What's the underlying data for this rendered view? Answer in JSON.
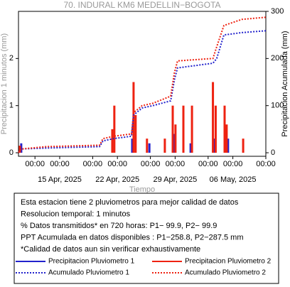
{
  "chart_data": {
    "type": "combo",
    "title": "70. INDURAL KM6 MEDELLIN−BOGOTA",
    "xlabel": "Tiempo",
    "ylabel": "Precipitacion 1 minutos (mm)",
    "y2label": "Precipitacion Acumulada (mm)",
    "xlim": [
      "2025-04-10 00:00",
      "2025-05-10 00:00"
    ],
    "xticks": [
      {
        "value": "2025-04-12 00:00",
        "label": "00:00"
      },
      {
        "value": "2025-04-15 00:00",
        "label": "00:00"
      },
      {
        "value": "2025-04-19 00:00",
        "label": "00:00"
      },
      {
        "value": "2025-04-22 00:00",
        "label": "00:00"
      },
      {
        "value": "2025-04-26 00:00",
        "label": "00:00"
      },
      {
        "value": "2025-04-29 00:00",
        "label": "00:00"
      },
      {
        "value": "2025-05-03 00:00",
        "label": "00:00"
      },
      {
        "value": "2025-05-06 00:00",
        "label": "00:00"
      },
      {
        "value": "2025-05-10 00:00",
        "label": "00:00"
      }
    ],
    "xtick_dates": [
      {
        "value": "2025-04-15 00:00",
        "label": "15 Apr, 2025"
      },
      {
        "value": "2025-04-22 00:00",
        "label": "22 Apr, 2025"
      },
      {
        "value": "2025-04-29 00:00",
        "label": "29 Apr, 2025"
      },
      {
        "value": "2025-05-06 00:00",
        "label": "06 May, 2025"
      }
    ],
    "ylim": [
      -0.075,
      3.0
    ],
    "yticks": [
      0,
      1,
      2
    ],
    "y2lim": [
      -7.5,
      300
    ],
    "y2ticks": [
      0,
      100,
      200,
      300
    ],
    "grid": false,
    "series": [
      {
        "name": "Precipitacion Pluviometro 1",
        "type": "bar",
        "color": "#2222cc",
        "x": [
          "2025-04-10 08:00",
          "2025-04-23 19:00",
          "2025-04-25 21:00",
          "2025-04-28 22:00",
          "2025-04-30 21:00",
          "2025-05-03 19:00",
          "2025-05-05 10:00"
        ],
        "values": [
          0.2,
          0.3,
          0.2,
          0.4,
          0.2,
          0.3,
          0.3
        ]
      },
      {
        "name": "Precipitacion Pluviometro 2",
        "type": "bar",
        "color": "#ee2211",
        "x": [
          "2025-04-10 04:00",
          "2025-04-21 09:00",
          "2025-04-21 15:00",
          "2025-04-23 23:00",
          "2025-04-24 05:00",
          "2025-04-25 14:00",
          "2025-04-27 18:00",
          "2025-04-28 17:00",
          "2025-04-29 01:00",
          "2025-04-30 00:00",
          "2025-05-01 01:00",
          "2025-05-03 14:00",
          "2025-05-03 22:00",
          "2025-05-05 00:00",
          "2025-05-05 06:00",
          "2025-05-07 06:00"
        ],
        "values": [
          0.15,
          0.5,
          1.0,
          1.5,
          0.8,
          0.3,
          0.3,
          1.0,
          0.6,
          1.0,
          1.0,
          1.5,
          1.0,
          1.0,
          0.6,
          0.3
        ]
      },
      {
        "name": "Acumulado Pluviometro 1",
        "type": "line",
        "axis": "y2",
        "color": "#2222cc",
        "linestyle": "dotted",
        "x": [
          "2025-04-10 00:00",
          "2025-04-10 08:00",
          "2025-04-13 09:00",
          "2025-04-19 20:00",
          "2025-04-20 06:00",
          "2025-04-21 13:00",
          "2025-04-23 17:00",
          "2025-04-23 23:00",
          "2025-04-25 00:00",
          "2025-04-26 07:00",
          "2025-04-28 11:00",
          "2025-04-28 22:00",
          "2025-04-29 07:00",
          "2025-05-03 14:00",
          "2025-05-04 01:00",
          "2025-05-04 22:00",
          "2025-05-07 02:00",
          "2025-05-10 00:00"
        ],
        "values": [
          0,
          8,
          10,
          13,
          25,
          30,
          35,
          80,
          95,
          100,
          110,
          155,
          180,
          190,
          200,
          250,
          255,
          258.8
        ]
      },
      {
        "name": "Acumulado Pluviometro 2",
        "type": "line",
        "axis": "y2",
        "color": "#ee2211",
        "linestyle": "dotted",
        "x": [
          "2025-04-10 00:00",
          "2025-04-10 08:00",
          "2025-04-13 09:00",
          "2025-04-19 20:00",
          "2025-04-20 06:00",
          "2025-04-21 13:00",
          "2025-04-23 17:00",
          "2025-04-23 23:00",
          "2025-04-25 00:00",
          "2025-04-26 07:00",
          "2025-04-28 11:00",
          "2025-04-28 22:00",
          "2025-04-29 07:00",
          "2025-05-03 14:00",
          "2025-05-04 01:00",
          "2025-05-04 22:00",
          "2025-05-07 02:00",
          "2025-05-10 00:00"
        ],
        "values": [
          0,
          8,
          13,
          16,
          30,
          35,
          40,
          85,
          100,
          105,
          120,
          170,
          195,
          200,
          225,
          270,
          283,
          287.5
        ]
      }
    ],
    "notes": [
      "Esta estacion tiene 2 pluviometros para mejor calidad de datos",
      "Resolucion temporal: 1 minutos",
      "% Datos transmitidos* en 720 horas: P1− 99.9, P2− 99.9",
      "PPT Acumulada en datos disponibles : P1−258.8, P2−287.5 mm",
      "*Calidad de datos aun sin verificar exhaustivamente"
    ]
  }
}
